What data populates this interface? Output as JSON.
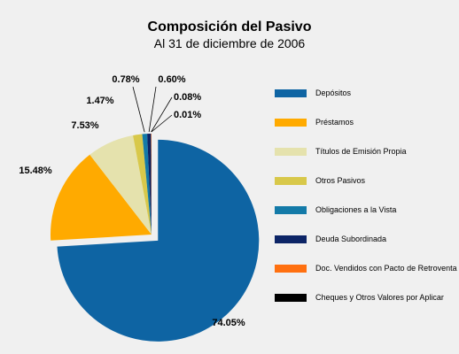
{
  "chart_data": {
    "type": "pie",
    "title": "Composición del Pasivo",
    "subtitle": "Al 31 de diciembre de 2006",
    "slices": [
      {
        "label": "Depósitos",
        "value": 74.05,
        "value_label": "74.05%",
        "color": "#0e64a3",
        "exploded": true
      },
      {
        "label": "Préstamos",
        "value": 15.48,
        "value_label": "15.48%",
        "color": "#ffaa00"
      },
      {
        "label": "Títulos de Emisión Propia",
        "value": 7.53,
        "value_label": "7.53%",
        "color": "#e5e2ad"
      },
      {
        "label": "Otros Pasivos",
        "value": 1.47,
        "value_label": "1.47%",
        "color": "#d8c84a"
      },
      {
        "label": "Obligaciones a la Vista",
        "value": 0.78,
        "value_label": "0.78%",
        "color": "#137aa8"
      },
      {
        "label": "Deuda Subordinada",
        "value": 0.6,
        "value_label": "0.60%",
        "color": "#0c2466"
      },
      {
        "label": "Doc. Vendidos con Pacto de Retroventa",
        "value": 0.08,
        "value_label": "0.08%",
        "color": "#ff7010"
      },
      {
        "label": "Cheques y Otros Valores por Aplicar",
        "value": 0.01,
        "value_label": "0.01%",
        "color": "#000000"
      }
    ],
    "legend_position": "right"
  }
}
